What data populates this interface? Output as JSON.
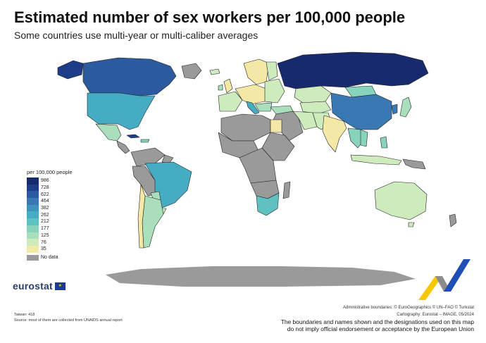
{
  "header": {
    "title": "Estimated number of sex workers per 100,000 people",
    "subtitle": "Some countries use multi-year or multi-caliber averages"
  },
  "legend": {
    "title": "per 100,000 people",
    "classes": [
      {
        "label": "986",
        "color": "#172a6e"
      },
      {
        "label": "728",
        "color": "#1e3d88"
      },
      {
        "label": "622",
        "color": "#2b5a9e"
      },
      {
        "label": "464",
        "color": "#3978b3"
      },
      {
        "label": "382",
        "color": "#3f92bd"
      },
      {
        "label": "262",
        "color": "#46acc4"
      },
      {
        "label": "212",
        "color": "#5fc2c2"
      },
      {
        "label": "177",
        "color": "#88d3bd"
      },
      {
        "label": "125",
        "color": "#a9dfbc"
      },
      {
        "label": "76",
        "color": "#cdebbd"
      },
      {
        "label": "35",
        "color": "#f4e8a6"
      }
    ],
    "no_data_label": "No data",
    "no_data_color": "#9a9a9a"
  },
  "branding": {
    "logo_text": "eurostat",
    "flag_stars": "★"
  },
  "footer": {
    "note_taiwan": "Taiwan: 418",
    "source": "Source: most of them are collected from UNAIDS annual report",
    "boundaries": "Administrative boundaries: © EuroGeographics © UN–FAO © Turkstat",
    "cartography": "Cartography: Eurostat – IMAGE, 05/2024",
    "disclaimer_line1": "The boundaries and names shown and the designations used on this map",
    "disclaimer_line2": "do not imply official endorsement or acceptance by the European Union"
  },
  "colors": {
    "ocean": "#ffffff",
    "border": "#222222",
    "emblem_blue": "#1f4fb5",
    "emblem_yellow": "#f5c800",
    "emblem_grey": "#8c8c8c"
  }
}
